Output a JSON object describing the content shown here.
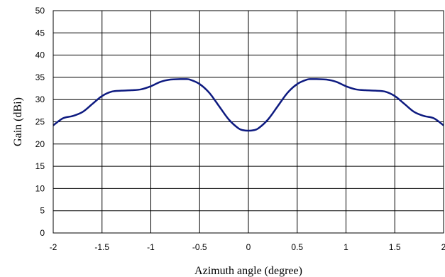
{
  "chart_data": {
    "type": "line",
    "title": "",
    "xlabel": "Azimuth angle (degree)",
    "ylabel": "Gain (dBi)",
    "xlim": [
      -2,
      2
    ],
    "ylim": [
      0,
      50
    ],
    "grid": true,
    "legend": "none",
    "x_ticks": [
      "-2",
      "-1.5",
      "-1",
      "-0.5",
      "0",
      "0.5",
      "1",
      "1.5",
      "2"
    ],
    "y_ticks": [
      "0",
      "5",
      "10",
      "15",
      "20",
      "25",
      "30",
      "35",
      "40",
      "45",
      "50"
    ],
    "series": [
      {
        "color": "#0d1a80",
        "x": [
          -2.0,
          -1.9,
          -1.8,
          -1.7,
          -1.6,
          -1.5,
          -1.4,
          -1.3,
          -1.2,
          -1.1,
          -1.0,
          -0.9,
          -0.8,
          -0.7,
          -0.65,
          -0.6,
          -0.5,
          -0.4,
          -0.3,
          -0.2,
          -0.1,
          -0.05,
          0.0,
          0.05,
          0.1,
          0.2,
          0.3,
          0.4,
          0.5,
          0.6,
          0.65,
          0.7,
          0.8,
          0.9,
          1.0,
          1.1,
          1.2,
          1.3,
          1.4,
          1.5,
          1.6,
          1.7,
          1.8,
          1.9,
          2.0
        ],
        "y": [
          24.2,
          25.8,
          26.3,
          27.2,
          29.0,
          30.8,
          31.8,
          32.0,
          32.1,
          32.3,
          33.0,
          34.0,
          34.5,
          34.6,
          34.6,
          34.5,
          33.5,
          31.5,
          28.5,
          25.5,
          23.5,
          23.1,
          23.0,
          23.1,
          23.5,
          25.5,
          28.5,
          31.5,
          33.5,
          34.5,
          34.6,
          34.6,
          34.5,
          34.0,
          33.0,
          32.3,
          32.1,
          32.0,
          31.8,
          30.8,
          29.0,
          27.2,
          26.3,
          25.8,
          24.2
        ]
      }
    ]
  }
}
